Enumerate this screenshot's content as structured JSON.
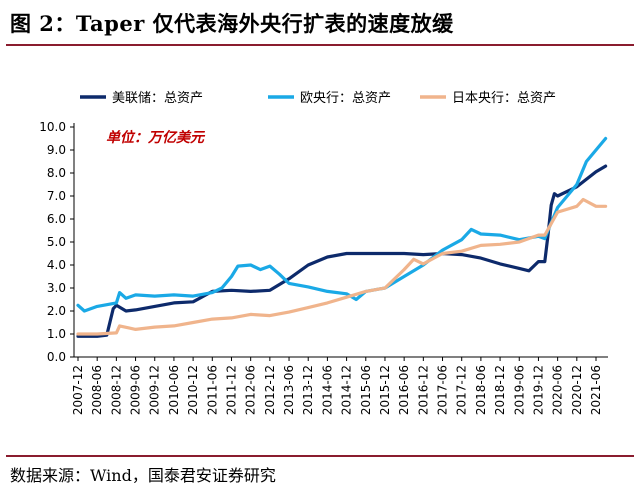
{
  "figure": {
    "title": "图 2：Taper 仅代表海外央行扩表的速度放缓",
    "source": "数据来源：Wind，国泰君安证券研究"
  },
  "chart_data": {
    "type": "line",
    "unit_label": "单位：万亿美元",
    "ylim": [
      0,
      10
    ],
    "yticks": [
      "0.0",
      "1.0",
      "2.0",
      "3.0",
      "4.0",
      "5.0",
      "6.0",
      "7.0",
      "8.0",
      "9.0",
      "10.0"
    ],
    "xlabels": [
      "2007-12",
      "2008-06",
      "2008-12",
      "2009-06",
      "2009-12",
      "2010-06",
      "2010-12",
      "2011-06",
      "2011-12",
      "2012-06",
      "2012-12",
      "2013-06",
      "2013-12",
      "2014-06",
      "2014-12",
      "2015-06",
      "2015-12",
      "2016-06",
      "2016-12",
      "2017-06",
      "2017-12",
      "2018-06",
      "2018-12",
      "2019-06",
      "2019-12",
      "2020-06",
      "2020-12",
      "2021-06"
    ],
    "legend_position": "top",
    "grid": false,
    "series": [
      {
        "name": "美联储：总资产",
        "color": "#0d2a6b",
        "points": [
          [
            "2007-12",
            0.9
          ],
          [
            "2008-06",
            0.9
          ],
          [
            "2008-09",
            0.95
          ],
          [
            "2008-11",
            2.1
          ],
          [
            "2008-12",
            2.25
          ],
          [
            "2009-03",
            2.0
          ],
          [
            "2009-06",
            2.05
          ],
          [
            "2009-12",
            2.2
          ],
          [
            "2010-06",
            2.35
          ],
          [
            "2010-12",
            2.4
          ],
          [
            "2011-06",
            2.85
          ],
          [
            "2011-12",
            2.9
          ],
          [
            "2012-06",
            2.85
          ],
          [
            "2012-12",
            2.9
          ],
          [
            "2013-06",
            3.4
          ],
          [
            "2013-12",
            4.0
          ],
          [
            "2014-06",
            4.35
          ],
          [
            "2014-12",
            4.5
          ],
          [
            "2015-06",
            4.5
          ],
          [
            "2015-12",
            4.5
          ],
          [
            "2016-06",
            4.5
          ],
          [
            "2016-12",
            4.45
          ],
          [
            "2017-06",
            4.5
          ],
          [
            "2017-12",
            4.45
          ],
          [
            "2018-06",
            4.3
          ],
          [
            "2018-12",
            4.05
          ],
          [
            "2019-06",
            3.85
          ],
          [
            "2019-09",
            3.75
          ],
          [
            "2019-12",
            4.15
          ],
          [
            "2020-02",
            4.15
          ],
          [
            "2020-03",
            5.3
          ],
          [
            "2020-04",
            6.6
          ],
          [
            "2020-05",
            7.1
          ],
          [
            "2020-06",
            7.0
          ],
          [
            "2020-12",
            7.4
          ],
          [
            "2021-06",
            8.05
          ],
          [
            "2021-09",
            8.3
          ]
        ]
      },
      {
        "name": "欧央行：总资产",
        "color": "#1aa9e6",
        "points": [
          [
            "2007-12",
            2.25
          ],
          [
            "2008-02",
            2.0
          ],
          [
            "2008-06",
            2.2
          ],
          [
            "2008-12",
            2.35
          ],
          [
            "2009-01",
            2.8
          ],
          [
            "2009-03",
            2.55
          ],
          [
            "2009-06",
            2.7
          ],
          [
            "2009-12",
            2.65
          ],
          [
            "2010-06",
            2.7
          ],
          [
            "2010-12",
            2.65
          ],
          [
            "2011-06",
            2.8
          ],
          [
            "2011-09",
            3.0
          ],
          [
            "2011-12",
            3.5
          ],
          [
            "2012-02",
            3.95
          ],
          [
            "2012-06",
            4.0
          ],
          [
            "2012-09",
            3.8
          ],
          [
            "2012-12",
            3.95
          ],
          [
            "2013-03",
            3.6
          ],
          [
            "2013-06",
            3.2
          ],
          [
            "2013-12",
            3.05
          ],
          [
            "2014-06",
            2.85
          ],
          [
            "2014-12",
            2.75
          ],
          [
            "2015-03",
            2.5
          ],
          [
            "2015-06",
            2.85
          ],
          [
            "2015-12",
            3.0
          ],
          [
            "2016-06",
            3.5
          ],
          [
            "2016-12",
            4.0
          ],
          [
            "2017-06",
            4.65
          ],
          [
            "2017-12",
            5.1
          ],
          [
            "2018-03",
            5.55
          ],
          [
            "2018-06",
            5.35
          ],
          [
            "2018-12",
            5.3
          ],
          [
            "2019-06",
            5.1
          ],
          [
            "2019-12",
            5.25
          ],
          [
            "2020-02",
            5.15
          ],
          [
            "2020-03",
            5.5
          ],
          [
            "2020-06",
            6.5
          ],
          [
            "2020-12",
            7.5
          ],
          [
            "2021-03",
            8.5
          ],
          [
            "2021-06",
            9.0
          ],
          [
            "2021-09",
            9.5
          ]
        ]
      },
      {
        "name": "日本央行：总资产",
        "color": "#f0b48c",
        "points": [
          [
            "2007-12",
            1.0
          ],
          [
            "2008-06",
            1.0
          ],
          [
            "2008-12",
            1.05
          ],
          [
            "2009-01",
            1.35
          ],
          [
            "2009-06",
            1.2
          ],
          [
            "2009-12",
            1.3
          ],
          [
            "2010-06",
            1.35
          ],
          [
            "2010-12",
            1.5
          ],
          [
            "2011-06",
            1.65
          ],
          [
            "2011-12",
            1.7
          ],
          [
            "2012-06",
            1.85
          ],
          [
            "2012-12",
            1.8
          ],
          [
            "2013-06",
            1.95
          ],
          [
            "2013-12",
            2.15
          ],
          [
            "2014-06",
            2.35
          ],
          [
            "2014-12",
            2.6
          ],
          [
            "2015-06",
            2.85
          ],
          [
            "2015-12",
            3.0
          ],
          [
            "2016-06",
            3.8
          ],
          [
            "2016-09",
            4.25
          ],
          [
            "2016-12",
            4.05
          ],
          [
            "2017-06",
            4.5
          ],
          [
            "2017-12",
            4.6
          ],
          [
            "2018-06",
            4.85
          ],
          [
            "2018-12",
            4.9
          ],
          [
            "2019-06",
            5.0
          ],
          [
            "2019-12",
            5.3
          ],
          [
            "2020-02",
            5.3
          ],
          [
            "2020-06",
            6.3
          ],
          [
            "2020-12",
            6.55
          ],
          [
            "2021-02",
            6.85
          ],
          [
            "2021-06",
            6.55
          ],
          [
            "2021-09",
            6.55
          ]
        ]
      }
    ]
  }
}
